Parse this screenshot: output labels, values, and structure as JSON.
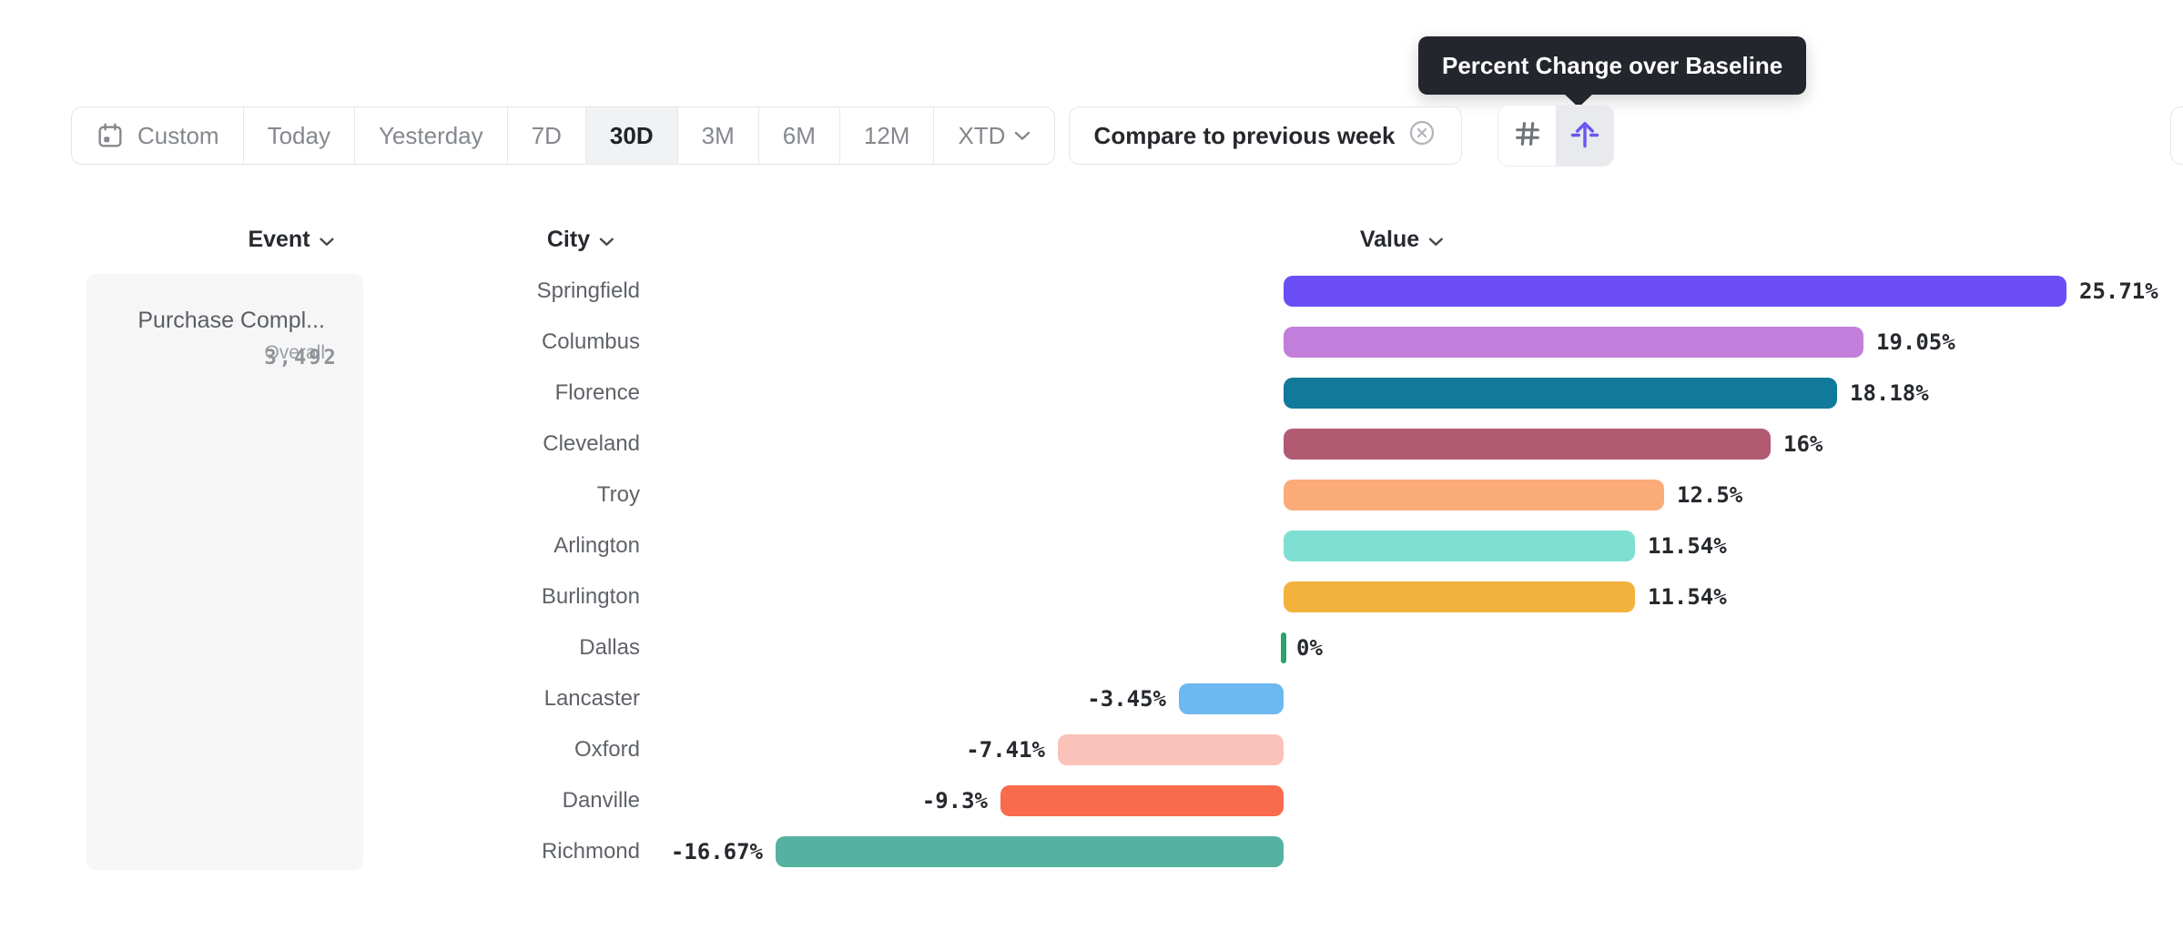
{
  "toolbar": {
    "date_ranges": [
      {
        "label": "Custom",
        "icon": "calendar-icon",
        "selected": false
      },
      {
        "label": "Today",
        "selected": false
      },
      {
        "label": "Yesterday",
        "selected": false
      },
      {
        "label": "7D",
        "selected": false
      },
      {
        "label": "30D",
        "selected": true
      },
      {
        "label": "3M",
        "selected": false
      },
      {
        "label": "6M",
        "selected": false
      },
      {
        "label": "12M",
        "selected": false
      },
      {
        "label": "XTD",
        "icon": "chevron-down-icon",
        "selected": false
      }
    ],
    "compare": {
      "label": "Compare to previous week",
      "clear_icon": "circle-x-icon"
    },
    "view_toggle": [
      {
        "icon": "hash-icon",
        "selected": false
      },
      {
        "icon": "baseline-lift-icon",
        "selected": true
      }
    ]
  },
  "tooltip": {
    "text": "Percent Change over Baseline"
  },
  "columns": {
    "event": "Event",
    "city": "City",
    "value": "Value"
  },
  "event_panel": {
    "title": "Purchase Compl...",
    "overall_label": "Overall",
    "overall_value": "3,492"
  },
  "chart_data": {
    "type": "bar",
    "orientation": "horizontal",
    "title": "Percent Change over Baseline",
    "unit": "%",
    "categories": [
      "Springfield",
      "Columbus",
      "Florence",
      "Cleveland",
      "Troy",
      "Arlington",
      "Burlington",
      "Dallas",
      "Lancaster",
      "Oxford",
      "Danville",
      "Richmond"
    ],
    "values": [
      25.71,
      19.05,
      18.18,
      16,
      12.5,
      11.54,
      11.54,
      0,
      -3.45,
      -7.41,
      -9.3,
      -16.67
    ],
    "labels": [
      "25.71%",
      "19.05%",
      "18.18%",
      "16%",
      "12.5%",
      "11.54%",
      "11.54%",
      "0%",
      "-3.45%",
      "-7.41%",
      "-9.3%",
      "-16.67%"
    ],
    "colors": [
      "#6b4ef5",
      "#c27edb",
      "#117a9b",
      "#b15a72",
      "#fbab77",
      "#7fdfd2",
      "#f2b23c",
      "#2aa46b",
      "#6cb8f0",
      "#fbc2b9",
      "#f96b4c",
      "#55b1a0"
    ],
    "xlim": [
      -16.67,
      25.71
    ],
    "zero_baseline": true,
    "grid": false,
    "legend": false
  },
  "colors": {
    "accent": "#6a57f2",
    "selected_range_bg": "#f1f2f4",
    "toolbar_text": "#84888d",
    "dark_text": "#26292e",
    "city_text": "#5f6368",
    "tooltip_bg": "#24262d",
    "panel_bg": "#f6f6f7",
    "border": "#e4e5e8"
  }
}
